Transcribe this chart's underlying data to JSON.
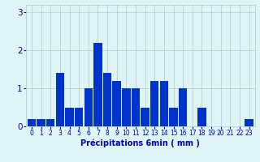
{
  "values": [
    0.2,
    0.2,
    0.2,
    1.4,
    0.5,
    0.5,
    1.0,
    2.2,
    1.4,
    1.2,
    1.0,
    1.0,
    0.5,
    1.2,
    1.2,
    0.5,
    1.0,
    0.0,
    0.5,
    0.0,
    0.0,
    0.0,
    0.0,
    0.2
  ],
  "bar_color": "#0033cc",
  "background_color": "#dff4f4",
  "grid_color": "#b0c8c8",
  "xlabel": "Précipitations 6min ( mm )",
  "ylim": [
    0,
    3.2
  ],
  "yticks": [
    0,
    1,
    2,
    3
  ],
  "xlim": [
    -0.6,
    23.6
  ],
  "xlabel_color": "#0000bb",
  "tick_color": "#0000bb",
  "xlabel_fontsize": 7.0,
  "tick_fontsize": 5.5,
  "ytick_fontsize": 7.5
}
